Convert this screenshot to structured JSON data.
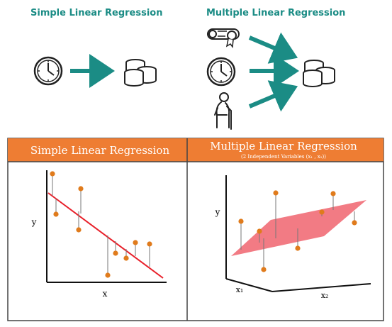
{
  "top": {
    "simple_title": "Simple Linear Regression",
    "multiple_title": "Multiple Linear Regression"
  },
  "icons": {
    "simple_inputs": [
      "clock-icon"
    ],
    "simple_output": "coins-icon",
    "multiple_inputs": [
      "diploma-icon",
      "clock-icon",
      "elderly-person-icon"
    ],
    "multiple_output": "coins-icon"
  },
  "colors": {
    "teal": "#1b8c85",
    "orange_header": "#ee7d33",
    "point": "#e07b1c",
    "fit_line": "#e8202a",
    "plane": "#f0646e"
  },
  "panels": {
    "left": {
      "title": "Simple Linear Regression",
      "xlabel": "x",
      "ylabel": "y"
    },
    "right": {
      "title": "Multiple Linear Regression",
      "subtitle": "(2 Independent Variables (x₁ , x₂))",
      "x1label": "x₁",
      "x2label": "x₂",
      "ylabel": "y"
    }
  }
}
